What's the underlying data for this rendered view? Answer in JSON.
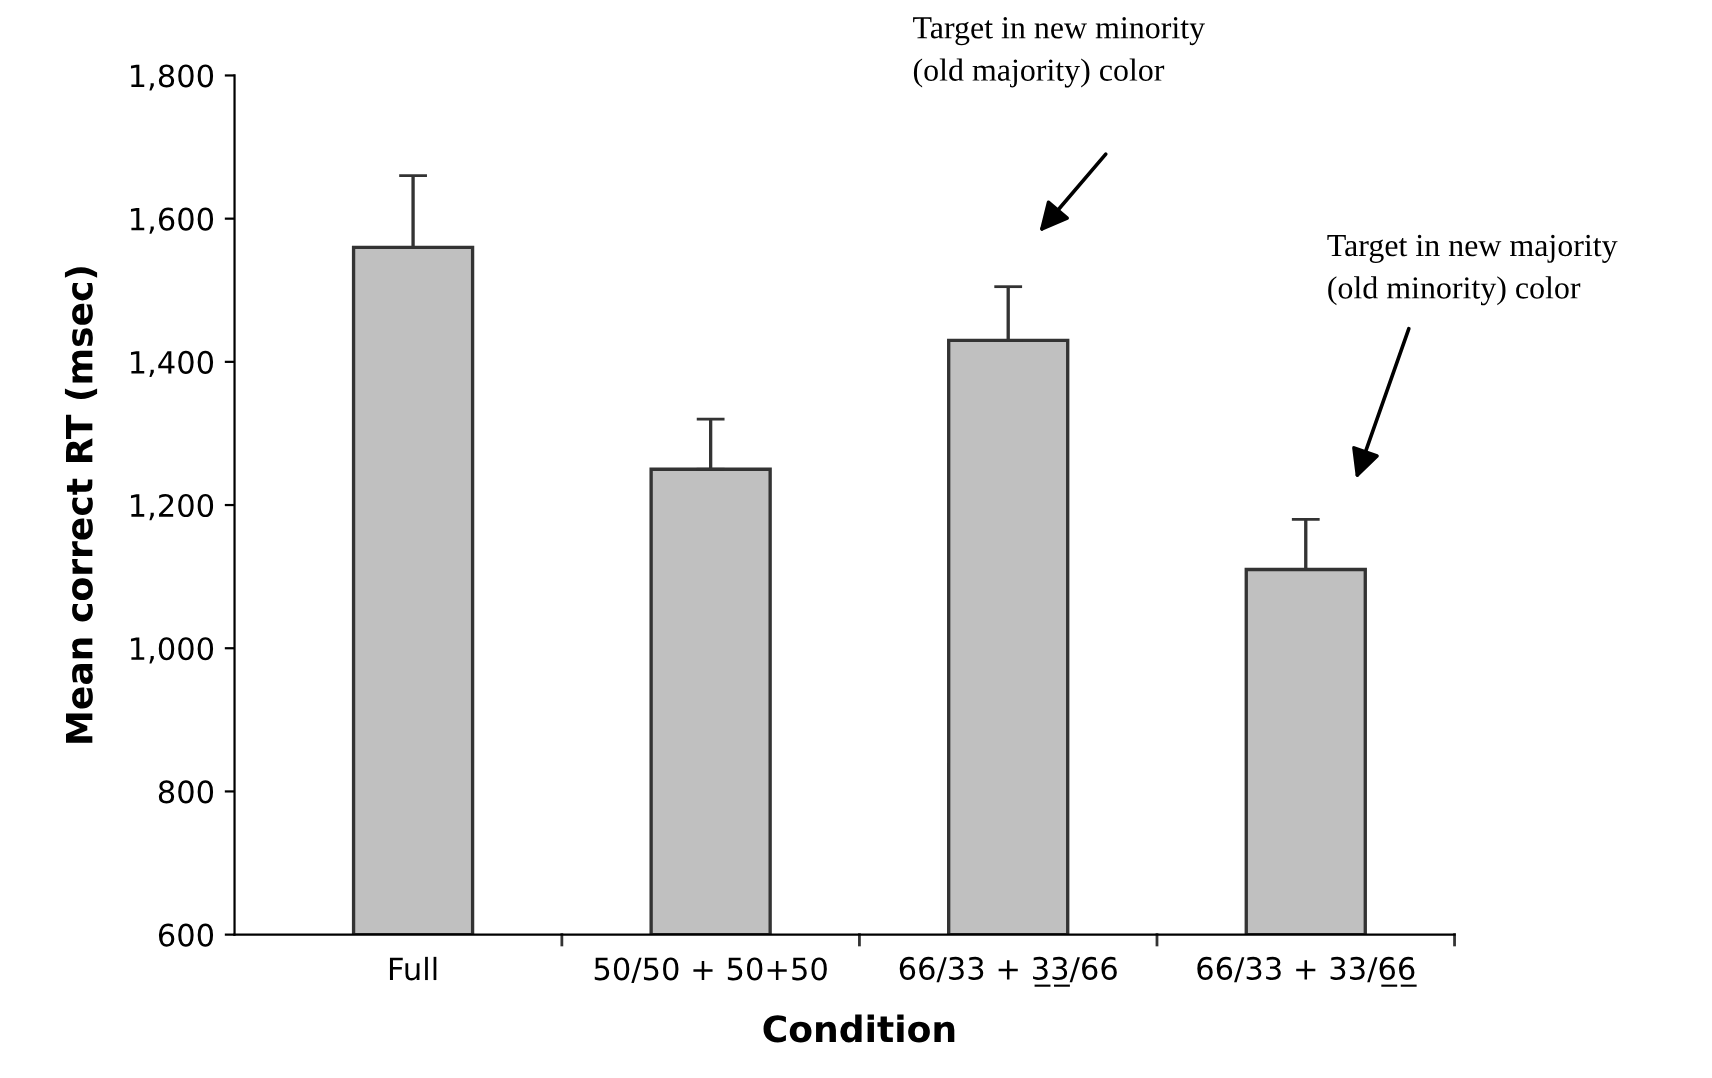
{
  "chart_data": {
    "type": "bar",
    "xlabel": "Condition",
    "ylabel": "Mean correct RT (msec)",
    "categories": [
      "Full",
      "50/50 + 50+50",
      "66/33 + 3̲3̲/66",
      "66/33 + 33/6̲6̲"
    ],
    "values": [
      1560,
      1250,
      1430,
      1110
    ],
    "errors": [
      [
        1560,
        1660
      ],
      [
        1250,
        1320
      ],
      [
        1430,
        1505
      ],
      [
        1110,
        1180
      ]
    ],
    "color": "#c0c0c0",
    "ylim": [
      600,
      1800
    ],
    "yticks": [
      {
        "value": 600,
        "label": "600"
      },
      {
        "value": 800,
        "label": "800"
      },
      {
        "value": 1000,
        "label": "1,000"
      },
      {
        "value": 1200,
        "label": "1,200"
      },
      {
        "value": 1400,
        "label": "1,400"
      },
      {
        "value": 1600,
        "label": "1,600"
      },
      {
        "value": 1800,
        "label": "1,800"
      }
    ],
    "grid": false,
    "legend": false,
    "annotations": [
      "Target in new minority\n(old majority) color",
      "Target in new majority\n(old minority) color"
    ]
  }
}
